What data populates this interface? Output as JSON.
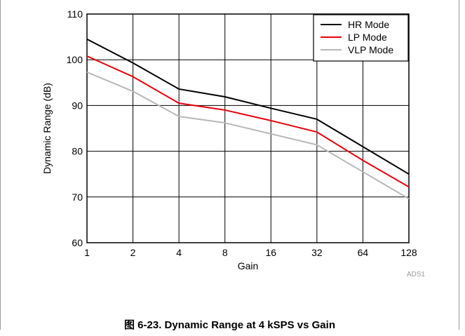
{
  "chart_data": {
    "type": "line",
    "title": "",
    "xlabel": "Gain",
    "ylabel": "Dynamic Range (dB)",
    "categories": [
      "1",
      "2",
      "4",
      "8",
      "16",
      "32",
      "64",
      "128"
    ],
    "ylim": [
      60,
      110
    ],
    "yticks": [
      "60",
      "70",
      "80",
      "90",
      "100",
      "110"
    ],
    "grid": true,
    "legend_position": "top-right",
    "series": [
      {
        "name": "HR Mode",
        "color": "#000000",
        "values": [
          104.5,
          99.3,
          93.6,
          91.9,
          89.4,
          87.0,
          81.0,
          75.0
        ]
      },
      {
        "name": "LP Mode",
        "color": "#e8000b",
        "values": [
          100.8,
          96.3,
          90.5,
          89.0,
          86.7,
          84.2,
          78.0,
          72.2
        ]
      },
      {
        "name": "VLP Mode",
        "color": "#b8b8b8",
        "values": [
          97.3,
          93.1,
          87.6,
          86.2,
          83.8,
          81.4,
          75.5,
          69.6
        ]
      }
    ]
  },
  "figure_id": "ADS1",
  "caption": "图 6-23. Dynamic Range at 4 kSPS vs Gain"
}
